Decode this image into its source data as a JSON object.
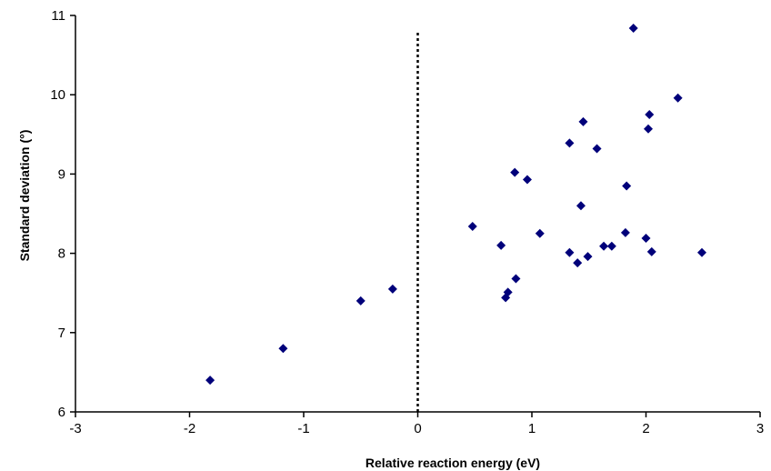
{
  "chart_data": {
    "type": "scatter",
    "title": "",
    "xlabel": "Relative reaction energy (eV)",
    "ylabel": "Standard deviation (°)",
    "xlim": [
      -3,
      3
    ],
    "ylim": [
      6,
      11
    ],
    "x_ticks": [
      "-3",
      "-2",
      "-1",
      "0",
      "1",
      "2",
      "3"
    ],
    "y_ticks": [
      "6",
      "7",
      "8",
      "9",
      "10",
      "11"
    ],
    "grid": false,
    "legend": "none",
    "marker": "diamond",
    "marker_color": "#00007a",
    "reference_line": {
      "x": 0,
      "style": "dotted",
      "y_max": 10.8
    },
    "series": [
      {
        "points": [
          [
            -1.82,
            6.4
          ],
          [
            -1.18,
            6.8
          ],
          [
            -0.5,
            7.4
          ],
          [
            -0.22,
            7.55
          ],
          [
            0.48,
            8.34
          ],
          [
            0.73,
            8.1
          ],
          [
            0.77,
            7.44
          ],
          [
            0.79,
            7.51
          ],
          [
            0.85,
            9.02
          ],
          [
            0.86,
            7.68
          ],
          [
            0.96,
            8.93
          ],
          [
            1.07,
            8.25
          ],
          [
            1.33,
            9.39
          ],
          [
            1.33,
            8.01
          ],
          [
            1.4,
            7.88
          ],
          [
            1.43,
            8.6
          ],
          [
            1.45,
            9.66
          ],
          [
            1.49,
            7.96
          ],
          [
            1.57,
            9.32
          ],
          [
            1.63,
            8.09
          ],
          [
            1.7,
            8.09
          ],
          [
            1.82,
            8.26
          ],
          [
            1.83,
            8.85
          ],
          [
            1.89,
            10.84
          ],
          [
            2.0,
            8.19
          ],
          [
            2.02,
            9.57
          ],
          [
            2.03,
            9.75
          ],
          [
            2.05,
            8.02
          ],
          [
            2.28,
            9.96
          ],
          [
            2.49,
            8.01
          ]
        ]
      }
    ]
  }
}
